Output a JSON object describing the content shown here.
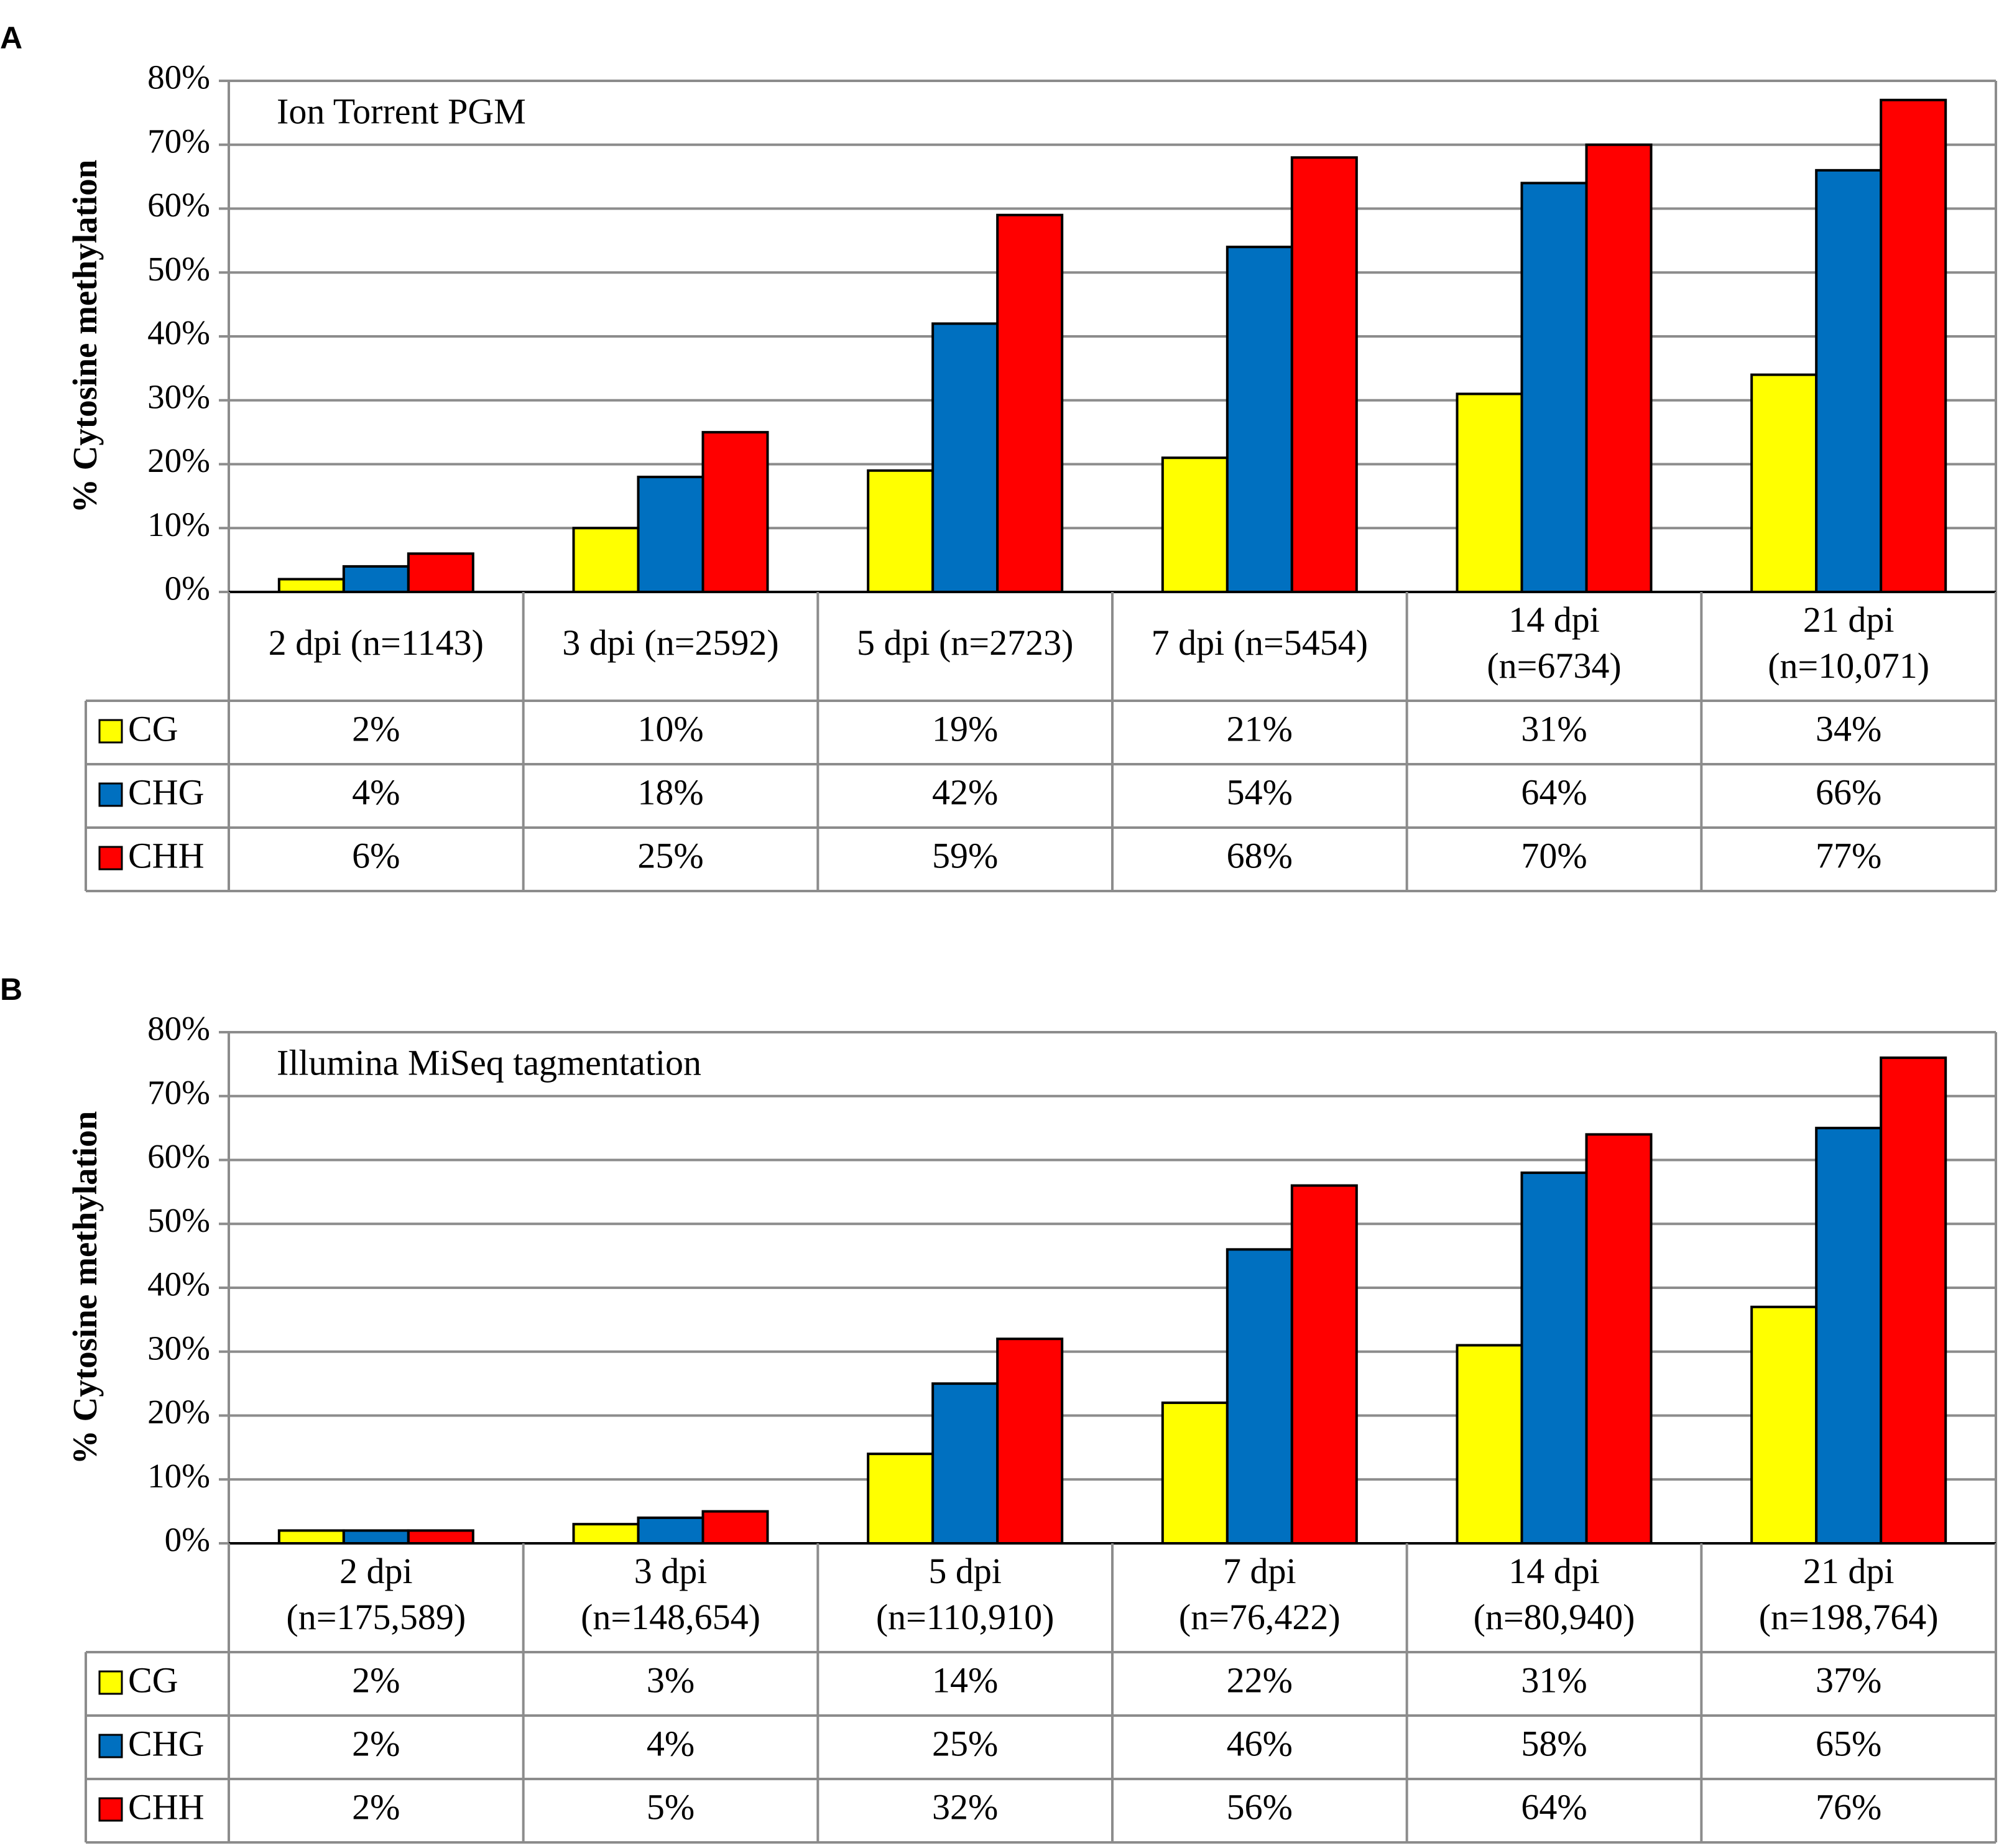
{
  "chart_data": [
    {
      "type": "bar",
      "panel_label": "A",
      "title": "Ion Torrent PGM",
      "ylabel": "% Cytosine methylation",
      "xlabel": "",
      "ylim": [
        0,
        80
      ],
      "y_ticks": [
        "0%",
        "10%",
        "20%",
        "30%",
        "40%",
        "50%",
        "60%",
        "70%",
        "80%"
      ],
      "grid": true,
      "categories": [
        [
          "2 dpi (n=1143)"
        ],
        [
          "3 dpi (n=2592)"
        ],
        [
          "5 dpi (n=2723)"
        ],
        [
          "7 dpi (n=5454)"
        ],
        [
          "14 dpi",
          "(n=6734)"
        ],
        [
          "21 dpi",
          "(n=10,071)"
        ]
      ],
      "series": [
        {
          "name": "CG",
          "color": "#FFFF00",
          "values": [
            2,
            10,
            19,
            21,
            31,
            34
          ],
          "labels": [
            "2%",
            "10%",
            "19%",
            "21%",
            "31%",
            "34%"
          ]
        },
        {
          "name": "CHG",
          "color": "#0070C0",
          "values": [
            4,
            18,
            42,
            54,
            64,
            66
          ],
          "labels": [
            "4%",
            "18%",
            "42%",
            "54%",
            "64%",
            "66%"
          ]
        },
        {
          "name": "CHH",
          "color": "#FF0000",
          "values": [
            6,
            25,
            59,
            68,
            70,
            77
          ],
          "labels": [
            "6%",
            "25%",
            "59%",
            "68%",
            "70%",
            "77%"
          ]
        }
      ]
    },
    {
      "type": "bar",
      "panel_label": "B",
      "title": "Illumina MiSeq tagmentation",
      "ylabel": "% Cytosine methylation",
      "xlabel": "",
      "ylim": [
        0,
        80
      ],
      "y_ticks": [
        "0%",
        "10%",
        "20%",
        "30%",
        "40%",
        "50%",
        "60%",
        "70%",
        "80%"
      ],
      "grid": true,
      "categories": [
        [
          "2 dpi",
          "(n=175,589)"
        ],
        [
          "3 dpi",
          "(n=148,654)"
        ],
        [
          "5 dpi",
          "(n=110,910)"
        ],
        [
          "7 dpi",
          "(n=76,422)"
        ],
        [
          "14 dpi",
          "(n=80,940)"
        ],
        [
          "21 dpi",
          "(n=198,764)"
        ]
      ],
      "series": [
        {
          "name": "CG",
          "color": "#FFFF00",
          "values": [
            2,
            3,
            14,
            22,
            31,
            37
          ],
          "labels": [
            "2%",
            "3%",
            "14%",
            "22%",
            "31%",
            "37%"
          ]
        },
        {
          "name": "CHG",
          "color": "#0070C0",
          "values": [
            2,
            4,
            25,
            46,
            58,
            65
          ],
          "labels": [
            "2%",
            "4%",
            "25%",
            "46%",
            "58%",
            "65%"
          ]
        },
        {
          "name": "CHH",
          "color": "#FF0000",
          "values": [
            2,
            5,
            32,
            56,
            64,
            76
          ],
          "labels": [
            "2%",
            "5%",
            "32%",
            "56%",
            "64%",
            "76%"
          ]
        }
      ]
    }
  ]
}
